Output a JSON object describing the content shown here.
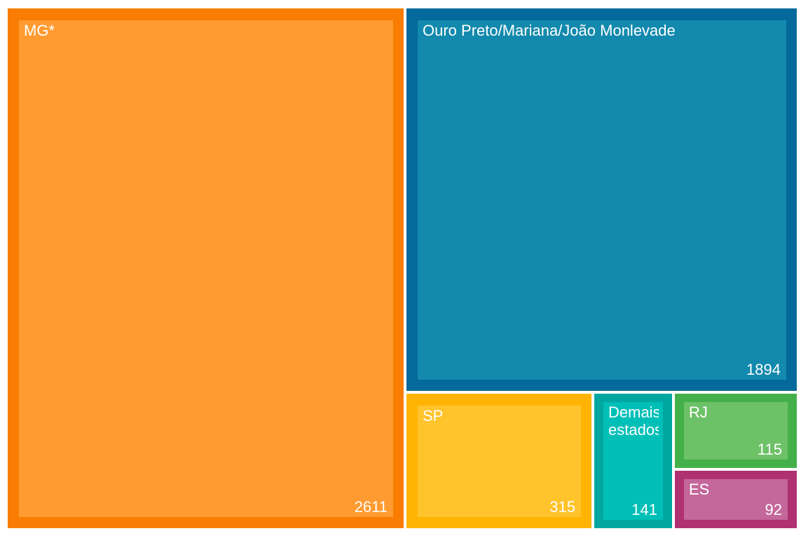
{
  "chart_data": {
    "type": "treemap",
    "title": "",
    "legend": "none",
    "text_color": "#FFFFFF",
    "background_color": "#FFFFFF",
    "items": [
      {
        "label": "MG*",
        "value": 2611,
        "outer_color": "#F97D02",
        "inner_color": "#FF9B30"
      },
      {
        "label": "Ouro Preto/Mariana/João Monlevade",
        "value": 1894,
        "outer_color": "#04699B",
        "inner_color": "#1289AD"
      },
      {
        "label": "SP",
        "value": 315,
        "outer_color": "#FFB404",
        "inner_color": "#FFC32B"
      },
      {
        "label": "Demais estados",
        "value": 141,
        "outer_color": "#00A7A0",
        "inner_color": "#00BFB7"
      },
      {
        "label": "RJ",
        "value": 115,
        "outer_color": "#44B049",
        "inner_color": "#6DC167"
      },
      {
        "label": "ES",
        "value": 92,
        "outer_color": "#B03172",
        "inner_color": "#C4679A"
      }
    ]
  }
}
